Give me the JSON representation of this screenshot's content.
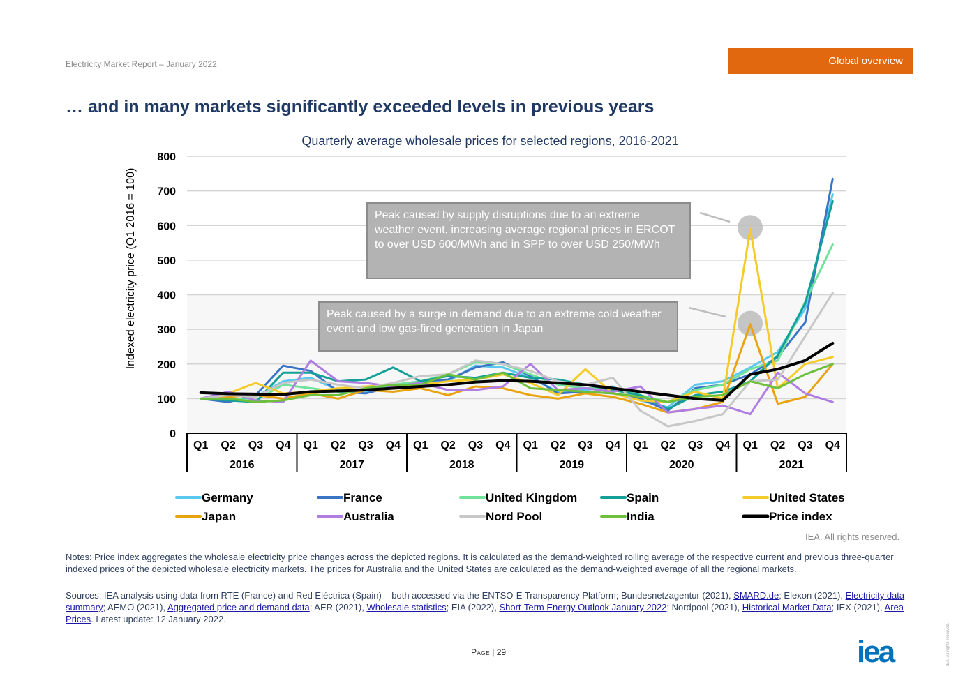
{
  "header": {
    "report": "Electricity Market Report – January 2022",
    "section": "Global overview"
  },
  "page_title": "… and in many markets significantly exceeded levels in previous years",
  "annotations": [
    "Peak caused by supply disruptions due to an extreme weather event, increasing average regional prices in ERCOT to over USD 600/MWh and in SPP to over USD 250/MWh",
    "Peak caused by a surge in demand due to an extreme cold weather event and low gas-fired generation in Japan"
  ],
  "rights": "IEA. All rights reserved.",
  "notes": "Notes: Price index aggregates the wholesale electricity price changes across the depicted regions. It is calculated as the demand-weighted rolling average of the respective current and previous three-quarter indexed prices of the depicted wholesale electricity markets. The prices for Australia and the United States are calculated as the demand-weighted average of all the regional markets.",
  "sources": {
    "t1": "Sources: IEA analysis using data from RTE (France) and Red Eléctrica (Spain) – both accessed via the ENTSO-E Transparency Platform; Bundesnetzagentur (2021), ",
    "l1": "SMARD.de",
    "t2": "; Elexon (2021), ",
    "l2": "Electricity data summary",
    "t3": "; AEMO (2021), ",
    "l3": "Aggregated price and demand data",
    "t4": "; AER (2021), ",
    "l4": "Wholesale statistics",
    "t5": "; EIA (2022), ",
    "l5": "Short-Term Energy Outlook January 2022",
    "t6": "; Nordpool (2021), ",
    "l6": "Historical Market Data",
    "t7": "; IEX (2021), ",
    "l7": "Area Prices",
    "t8": ". Latest update: 12 January 2022."
  },
  "page": {
    "label": "Page",
    "sep": " | ",
    "number": "29"
  },
  "side_note": "IEA. All rights reserved.",
  "logo_text": "iea",
  "colors": {
    "accent": "#e2680f",
    "title": "#1f3864",
    "logo": "#0072bc"
  },
  "chart_data": {
    "type": "line",
    "title": "Quarterly average wholesale prices for selected regions, 2016-2021",
    "ylabel": "Indexed electricity price (Q1 2016 = 100)",
    "xlabel": "",
    "ylim": [
      0,
      800
    ],
    "yticks": [
      0,
      100,
      200,
      300,
      400,
      500,
      600,
      700,
      800
    ],
    "categories": [
      "Q1",
      "Q2",
      "Q3",
      "Q4",
      "Q1",
      "Q2",
      "Q3",
      "Q4",
      "Q1",
      "Q2",
      "Q3",
      "Q4",
      "Q1",
      "Q2",
      "Q3",
      "Q4",
      "Q1",
      "Q2",
      "Q3",
      "Q4",
      "Q1",
      "Q2",
      "Q3",
      "Q4"
    ],
    "groups": [
      "2016",
      "2017",
      "2018",
      "2019",
      "2020",
      "2021"
    ],
    "grid": true,
    "legend": "bottom",
    "series": [
      {
        "name": "Germany",
        "color": "#5bc8ef",
        "width": 3,
        "values": [
          100,
          95,
          105,
          150,
          160,
          125,
          120,
          130,
          145,
          150,
          195,
          190,
          160,
          120,
          125,
          135,
          95,
          75,
          140,
          150,
          190,
          235,
          360,
          690
        ]
      },
      {
        "name": "France",
        "color": "#3b74c5",
        "width": 3,
        "values": [
          100,
          90,
          110,
          195,
          180,
          120,
          115,
          135,
          150,
          155,
          190,
          205,
          165,
          115,
          120,
          115,
          100,
          65,
          130,
          140,
          170,
          220,
          320,
          735
        ]
      },
      {
        "name": "United Kingdom",
        "color": "#6fe39a",
        "width": 3,
        "values": [
          100,
          100,
          95,
          140,
          130,
          120,
          125,
          140,
          150,
          170,
          205,
          200,
          170,
          140,
          130,
          130,
          110,
          90,
          125,
          140,
          185,
          210,
          380,
          545
        ]
      },
      {
        "name": "Spain",
        "color": "#14a097",
        "width": 3,
        "values": [
          100,
          95,
          90,
          175,
          175,
          150,
          155,
          190,
          150,
          165,
          160,
          175,
          160,
          155,
          140,
          125,
          110,
          70,
          110,
          120,
          150,
          225,
          375,
          670
        ]
      },
      {
        "name": "United States",
        "color": "#f5cb2a",
        "width": 3,
        "values": [
          100,
          115,
          145,
          115,
          120,
          130,
          135,
          140,
          140,
          150,
          155,
          170,
          145,
          110,
          185,
          115,
          95,
          90,
          120,
          100,
          590,
          130,
          200,
          220
        ]
      },
      {
        "name": "Japan",
        "color": "#e9a310",
        "width": 3,
        "values": [
          100,
          105,
          110,
          100,
          115,
          100,
          125,
          120,
          130,
          110,
          135,
          130,
          110,
          100,
          115,
          105,
          85,
          60,
          70,
          90,
          315,
          85,
          105,
          200
        ]
      },
      {
        "name": "Australia",
        "color": "#b07de3",
        "width": 3,
        "values": [
          100,
          120,
          95,
          90,
          210,
          150,
          145,
          135,
          145,
          125,
          125,
          135,
          200,
          125,
          130,
          120,
          135,
          60,
          70,
          80,
          55,
          175,
          115,
          90
        ]
      },
      {
        "name": "Nord Pool",
        "color": "#c7c7c7",
        "width": 3,
        "values": [
          100,
          110,
          105,
          145,
          155,
          140,
          130,
          145,
          165,
          170,
          210,
          200,
          180,
          150,
          140,
          160,
          65,
          20,
          35,
          55,
          150,
          155,
          280,
          405
        ]
      },
      {
        "name": "India",
        "color": "#6dbf3c",
        "width": 3,
        "values": [
          100,
          100,
          90,
          95,
          110,
          110,
          130,
          140,
          140,
          170,
          155,
          175,
          130,
          125,
          120,
          115,
          105,
          90,
          105,
          110,
          150,
          130,
          170,
          200
        ]
      },
      {
        "name": "Price index",
        "color": "#000000",
        "width": 4,
        "values": [
          117,
          114,
          113,
          112,
          120,
          122,
          125,
          130,
          135,
          140,
          148,
          152,
          150,
          145,
          140,
          130,
          120,
          110,
          100,
          95,
          170,
          185,
          210,
          260
        ]
      }
    ]
  }
}
